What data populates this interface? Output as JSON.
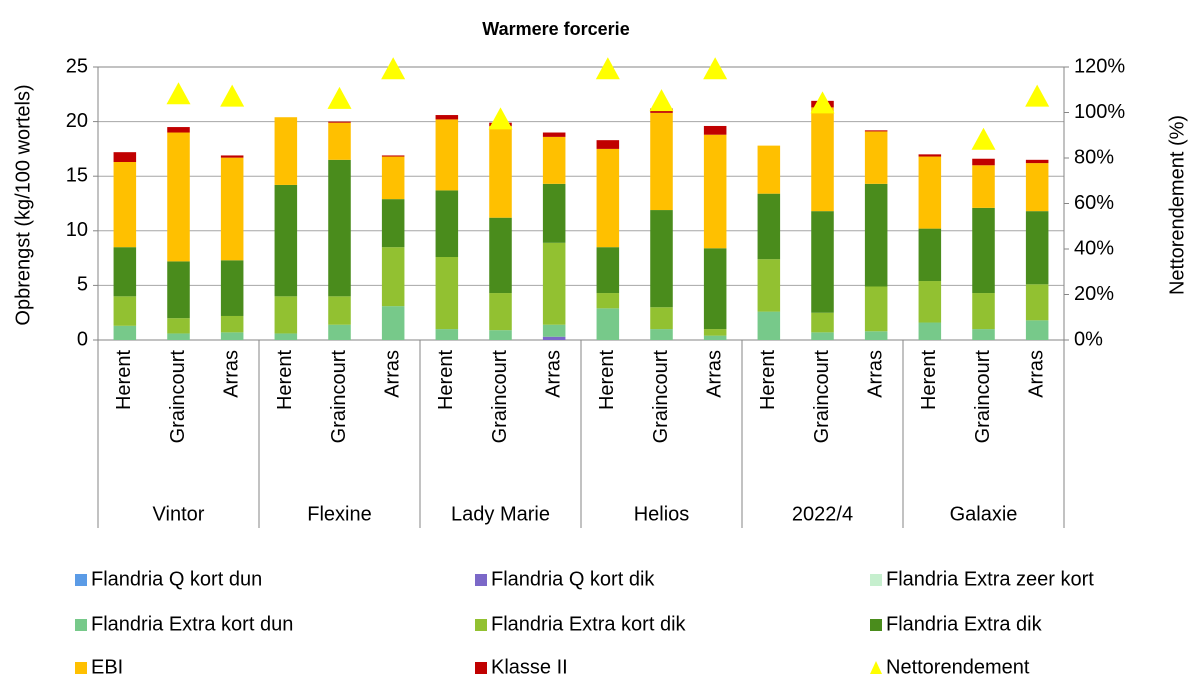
{
  "chart_data": {
    "type": "bar",
    "stacked": true,
    "title": "Warmere forcerie",
    "y_label": "Opbrengst (kg/100 wortels)",
    "y2_label": "Nettorendement (%)",
    "categories": [
      "Herent",
      "Graincourt",
      "Arras",
      "Herent",
      "Graincourt",
      "Arras",
      "Herent",
      "Graincourt",
      "Arras",
      "Herent",
      "Graincourt",
      "Arras",
      "Herent",
      "Graincourt",
      "Arras",
      "Herent",
      "Graincourt",
      "Arras"
    ],
    "groups": [
      "Vintor",
      "Flexine",
      "Lady Marie",
      "Helios",
      "2022/4",
      "Galaxie"
    ],
    "ylim": [
      0,
      25
    ],
    "yticks": [
      0,
      5,
      10,
      15,
      20,
      25
    ],
    "y2lim": [
      0,
      120
    ],
    "y2ticks": [
      {
        "value": 0,
        "label": "0%"
      },
      {
        "value": 20,
        "label": "20%"
      },
      {
        "value": 40,
        "label": "40%"
      },
      {
        "value": 60,
        "label": "60%"
      },
      {
        "value": 80,
        "label": "80%"
      },
      {
        "value": 100,
        "label": "100%"
      },
      {
        "value": 120,
        "label": "120%"
      }
    ],
    "grid": true,
    "series": [
      {
        "name": "Flandria Q kort dun",
        "color": "#5b9be6",
        "values": [
          0,
          0,
          0,
          0,
          0,
          0,
          0,
          0,
          0,
          0,
          0,
          0,
          0,
          0,
          0,
          0,
          0,
          0
        ]
      },
      {
        "name": "Flandria Q kort dik",
        "color": "#7b68c8",
        "values": [
          0,
          0,
          0,
          0,
          0,
          0,
          0,
          0,
          0.3,
          0,
          0,
          0,
          0,
          0,
          0,
          0,
          0,
          0
        ]
      },
      {
        "name": "Flandria Extra zeer kort",
        "color": "#c6efce",
        "values": [
          0,
          0,
          0,
          0,
          0,
          0,
          0,
          0,
          0,
          0,
          0,
          0,
          0,
          0,
          0,
          0,
          0,
          0
        ]
      },
      {
        "name": "Flandria Extra kort dun",
        "color": "#77c98a",
        "values": [
          1.3,
          0.6,
          0.7,
          0.6,
          1.4,
          3.1,
          1.0,
          0.9,
          1.1,
          2.9,
          1.0,
          0.4,
          2.6,
          0.7,
          0.8,
          1.6,
          1.0,
          1.8
        ]
      },
      {
        "name": "Flandria Extra kort dik",
        "color": "#92c131",
        "values": [
          2.7,
          1.4,
          1.5,
          3.4,
          2.6,
          5.4,
          6.6,
          3.4,
          7.5,
          1.4,
          2.0,
          0.6,
          4.8,
          1.8,
          4.1,
          3.8,
          3.3,
          3.3
        ]
      },
      {
        "name": "Flandria Extra dik",
        "color": "#4a8c1c",
        "values": [
          4.5,
          5.2,
          5.1,
          10.2,
          12.5,
          4.4,
          6.1,
          6.9,
          5.4,
          4.2,
          8.9,
          7.4,
          6.0,
          9.3,
          9.4,
          4.8,
          7.8,
          6.7
        ]
      },
      {
        "name": "EBI",
        "color": "#ffc000",
        "values": [
          7.8,
          11.8,
          9.4,
          6.2,
          3.4,
          3.9,
          6.5,
          8.4,
          4.3,
          9.0,
          8.9,
          10.4,
          4.4,
          9.5,
          4.8,
          6.6,
          3.9,
          4.4
        ]
      },
      {
        "name": "Klasse II",
        "color": "#c00000",
        "values": [
          0.9,
          0.5,
          0.2,
          0,
          0.1,
          0.1,
          0.4,
          0.3,
          0.4,
          0.8,
          0.4,
          0.8,
          0,
          0.6,
          0.1,
          0.2,
          0.6,
          0.3
        ]
      },
      {
        "name": "Nettorendement",
        "color": "#ffff00",
        "axis": "y2",
        "type": "marker",
        "values": [
          null,
          108,
          107,
          null,
          106,
          119,
          null,
          97,
          null,
          119,
          105,
          119,
          null,
          104,
          null,
          null,
          88,
          107
        ]
      }
    ]
  }
}
